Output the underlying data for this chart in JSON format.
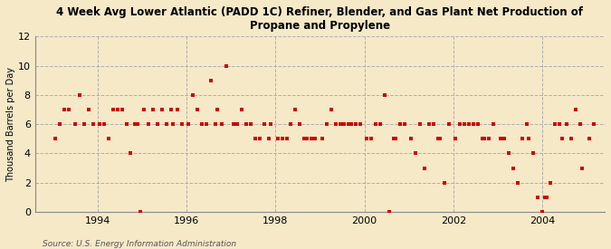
{
  "title_line1": "4 Week Avg Lower Atlantic (PADD 1C) Refiner, Blender, and Gas Plant Net Production of",
  "title_line2": "Propane and Propylene",
  "ylabel": "Thousand Barrels per Day",
  "source": "Source: U.S. Energy Information Administration",
  "background_color": "#f5e9c8",
  "plot_bg_color": "#fdf5e0",
  "ylim": [
    0,
    12
  ],
  "yticks": [
    0,
    2,
    4,
    6,
    8,
    10,
    12
  ],
  "xlim": [
    1992.6,
    2005.4
  ],
  "xticks": [
    1994,
    1996,
    1998,
    2000,
    2002,
    2004
  ],
  "dot_color": "#cc0000",
  "dot_size": 5,
  "data_points": [
    [
      1993.05,
      5
    ],
    [
      1993.15,
      6
    ],
    [
      1993.25,
      7
    ],
    [
      1993.35,
      7
    ],
    [
      1993.5,
      6
    ],
    [
      1993.6,
      8
    ],
    [
      1993.7,
      6
    ],
    [
      1993.8,
      7
    ],
    [
      1993.9,
      6
    ],
    [
      1994.05,
      6
    ],
    [
      1994.15,
      6
    ],
    [
      1994.25,
      5
    ],
    [
      1994.35,
      7
    ],
    [
      1994.45,
      7
    ],
    [
      1994.55,
      7
    ],
    [
      1994.65,
      6
    ],
    [
      1994.75,
      4
    ],
    [
      1994.85,
      6
    ],
    [
      1994.9,
      6
    ],
    [
      1994.97,
      0
    ],
    [
      1995.05,
      7
    ],
    [
      1995.15,
      6
    ],
    [
      1995.25,
      7
    ],
    [
      1995.35,
      6
    ],
    [
      1995.45,
      7
    ],
    [
      1995.55,
      6
    ],
    [
      1995.65,
      7
    ],
    [
      1995.7,
      6
    ],
    [
      1995.8,
      7
    ],
    [
      1995.9,
      6
    ],
    [
      1996.05,
      6
    ],
    [
      1996.15,
      8
    ],
    [
      1996.25,
      7
    ],
    [
      1996.35,
      6
    ],
    [
      1996.45,
      6
    ],
    [
      1996.55,
      9
    ],
    [
      1996.65,
      6
    ],
    [
      1996.7,
      7
    ],
    [
      1996.8,
      6
    ],
    [
      1996.9,
      10
    ],
    [
      1997.05,
      6
    ],
    [
      1997.15,
      6
    ],
    [
      1997.25,
      7
    ],
    [
      1997.35,
      6
    ],
    [
      1997.45,
      6
    ],
    [
      1997.55,
      5
    ],
    [
      1997.65,
      5
    ],
    [
      1997.75,
      6
    ],
    [
      1997.85,
      5
    ],
    [
      1997.9,
      6
    ],
    [
      1998.05,
      5
    ],
    [
      1998.15,
      5
    ],
    [
      1998.25,
      5
    ],
    [
      1998.35,
      6
    ],
    [
      1998.45,
      7
    ],
    [
      1998.55,
      6
    ],
    [
      1998.65,
      5
    ],
    [
      1998.7,
      5
    ],
    [
      1998.8,
      5
    ],
    [
      1998.9,
      5
    ],
    [
      1999.05,
      5
    ],
    [
      1999.15,
      6
    ],
    [
      1999.25,
      7
    ],
    [
      1999.35,
      6
    ],
    [
      1999.45,
      6
    ],
    [
      1999.55,
      6
    ],
    [
      1999.65,
      6
    ],
    [
      1999.7,
      6
    ],
    [
      1999.8,
      6
    ],
    [
      1999.9,
      6
    ],
    [
      2000.05,
      5
    ],
    [
      2000.15,
      5
    ],
    [
      2000.25,
      6
    ],
    [
      2000.35,
      6
    ],
    [
      2000.45,
      8
    ],
    [
      2000.55,
      0
    ],
    [
      2000.65,
      5
    ],
    [
      2000.7,
      5
    ],
    [
      2000.8,
      6
    ],
    [
      2000.9,
      6
    ],
    [
      2001.05,
      5
    ],
    [
      2001.15,
      4
    ],
    [
      2001.25,
      6
    ],
    [
      2001.35,
      3
    ],
    [
      2001.45,
      6
    ],
    [
      2001.55,
      6
    ],
    [
      2001.65,
      5
    ],
    [
      2001.7,
      5
    ],
    [
      2001.8,
      2
    ],
    [
      2001.9,
      6
    ],
    [
      2002.05,
      5
    ],
    [
      2002.15,
      6
    ],
    [
      2002.25,
      6
    ],
    [
      2002.35,
      6
    ],
    [
      2002.45,
      6
    ],
    [
      2002.55,
      6
    ],
    [
      2002.65,
      5
    ],
    [
      2002.7,
      5
    ],
    [
      2002.8,
      5
    ],
    [
      2002.9,
      6
    ],
    [
      2003.05,
      5
    ],
    [
      2003.15,
      5
    ],
    [
      2003.25,
      4
    ],
    [
      2003.35,
      3
    ],
    [
      2003.45,
      2
    ],
    [
      2003.55,
      5
    ],
    [
      2003.65,
      6
    ],
    [
      2003.7,
      5
    ],
    [
      2003.8,
      4
    ],
    [
      2003.9,
      1
    ],
    [
      2004.0,
      0
    ],
    [
      2004.05,
      1
    ],
    [
      2004.1,
      1
    ],
    [
      2004.18,
      2
    ],
    [
      2004.28,
      6
    ],
    [
      2004.38,
      6
    ],
    [
      2004.45,
      5
    ],
    [
      2004.55,
      6
    ],
    [
      2004.65,
      5
    ],
    [
      2004.75,
      7
    ],
    [
      2004.85,
      6
    ],
    [
      2004.9,
      3
    ],
    [
      2005.05,
      5
    ],
    [
      2005.15,
      6
    ]
  ]
}
